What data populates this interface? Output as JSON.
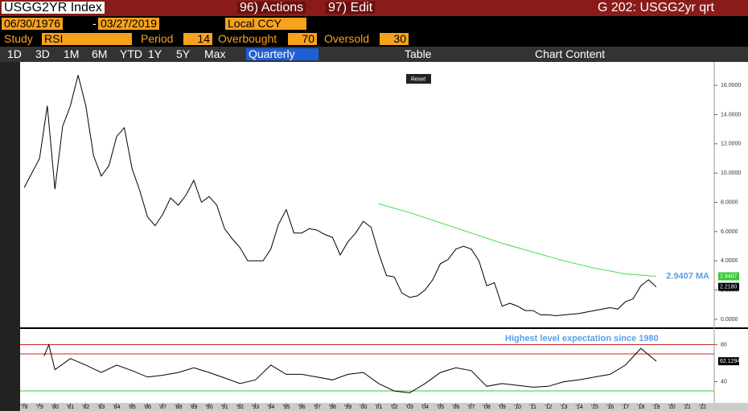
{
  "toolbar": {
    "ticker": "USGG2YR Index",
    "actions": "96) Actions",
    "edit": "97) Edit",
    "page_title": "G 202: USGG2yr qrt",
    "start_date": "06/30/1976",
    "end_date": "03/27/2019",
    "currency": "Local CCY",
    "study_label": "Study",
    "study": "RSI",
    "period_label": "Period",
    "period": 14,
    "overbought_label": "Overbought",
    "overbought": 70,
    "oversold_label": "Oversold",
    "oversold": 30,
    "ranges": [
      "1D",
      "3D",
      "1M",
      "6M",
      "YTD",
      "1Y",
      "5Y",
      "Max"
    ],
    "frequency": "Quarterly",
    "table": "Table",
    "chart_content": "Chart Content",
    "reset": "Reset"
  },
  "chart_data": [
    {
      "type": "line",
      "ylim": [
        -0.55,
        17.6
      ],
      "yticks": [
        {
          "value": 0,
          "label": "0.0000"
        },
        {
          "value": 2,
          "label": "2.0000"
        },
        {
          "value": 4,
          "label": "4.0000"
        },
        {
          "value": 6,
          "label": "6.0000"
        },
        {
          "value": 8,
          "label": "8.0000"
        },
        {
          "value": 10,
          "label": "10.0000"
        },
        {
          "value": 12,
          "label": "12.0000"
        },
        {
          "value": 14,
          "label": "14.0000"
        },
        {
          "value": 16,
          "label": "16.0000"
        }
      ],
      "annotation": "2.9407 MA",
      "last_values": [
        {
          "value": 2.9407,
          "label": "2.9407",
          "color": "#33cc33"
        },
        {
          "value": 2.218,
          "label": "2.2180",
          "color": "#000000"
        }
      ],
      "series": [
        {
          "color": "#000000",
          "x": [
            1978,
            1979,
            1979.5,
            1980,
            1980.5,
            1981,
            1981.5,
            1982,
            1982.5,
            1983,
            1983.5,
            1984,
            1984.5,
            1985,
            1985.5,
            1986,
            1986.5,
            1987,
            1987.5,
            1988,
            1988.5,
            1989,
            1989.5,
            1990,
            1990.5,
            1991,
            1991.5,
            1992,
            1992.5,
            1993,
            1993.5,
            1994,
            1994.5,
            1995,
            1995.5,
            1996,
            1996.5,
            1997,
            1997.5,
            1998,
            1998.5,
            1999,
            1999.5,
            2000,
            2000.5,
            2001,
            2001.5,
            2002,
            2002.5,
            2003,
            2003.5,
            2004,
            2004.5,
            2005,
            2005.5,
            2006,
            2006.5,
            2007,
            2007.5,
            2008,
            2008.5,
            2009,
            2009.5,
            2010,
            2010.5,
            2011,
            2011.5,
            2012,
            2012.5,
            2013,
            2013.5,
            2014,
            2014.5,
            2015,
            2015.5,
            2016,
            2016.5,
            2017,
            2017.5,
            2018,
            2018.5,
            2019
          ],
          "values": [
            9.0,
            11.0,
            14.6,
            8.9,
            13.2,
            14.6,
            16.7,
            14.6,
            11.2,
            9.8,
            10.5,
            12.5,
            13.1,
            10.3,
            8.8,
            7.0,
            6.4,
            7.2,
            8.3,
            7.8,
            8.5,
            9.5,
            8.0,
            8.4,
            7.8,
            6.2,
            5.5,
            4.9,
            4.0,
            4.0,
            4.0,
            4.8,
            6.5,
            7.5,
            5.9,
            5.9,
            6.2,
            6.1,
            5.8,
            5.6,
            4.4,
            5.3,
            5.9,
            6.7,
            6.3,
            4.5,
            3.0,
            2.9,
            1.8,
            1.5,
            1.6,
            2.0,
            2.7,
            3.8,
            4.1,
            4.8,
            5.0,
            4.8,
            4.0,
            2.3,
            2.5,
            0.9,
            1.1,
            0.9,
            0.6,
            0.6,
            0.3,
            0.3,
            0.25,
            0.3,
            0.35,
            0.4,
            0.5,
            0.6,
            0.7,
            0.8,
            0.7,
            1.2,
            1.4,
            2.3,
            2.7,
            2.218
          ]
        },
        {
          "color": "#44dd44",
          "x": [
            2001,
            2003,
            2005,
            2007,
            2009,
            2011,
            2013,
            2015,
            2017,
            2019
          ],
          "values": [
            7.9,
            7.3,
            6.6,
            5.9,
            5.2,
            4.6,
            4.0,
            3.5,
            3.1,
            2.9407
          ]
        }
      ]
    },
    {
      "type": "line",
      "ylim": [
        17,
        97
      ],
      "yticks": [
        40,
        80
      ],
      "annotation": "Highest level expectation since 1980",
      "last_values": [
        {
          "value": 62.1294,
          "label": "62.1294",
          "color": "#000000"
        }
      ],
      "series": [
        {
          "color": "#000000",
          "x": [
            1979.3,
            1979.6,
            1980,
            1981,
            1982,
            1983,
            1984,
            1985,
            1986,
            1987,
            1988,
            1989,
            1990,
            1991,
            1992,
            1993,
            1994,
            1995,
            1996,
            1997,
            1998,
            1999,
            2000,
            2001,
            2002,
            2003,
            2004,
            2005,
            2006,
            2007,
            2008,
            2009,
            2010,
            2011,
            2012,
            2013,
            2014,
            2015,
            2016,
            2017,
            2018,
            2019
          ],
          "values": [
            68,
            80,
            53,
            65,
            58,
            50,
            58,
            52,
            45,
            47,
            50,
            55,
            50,
            44,
            38,
            42,
            58,
            48,
            48,
            45,
            42,
            48,
            50,
            38,
            30,
            28,
            38,
            50,
            55,
            52,
            35,
            38,
            36,
            34,
            35,
            40,
            42,
            45,
            48,
            58,
            76,
            62.1294
          ]
        }
      ],
      "xticks": [
        {
          "value": 1978,
          "label": "'78"
        },
        {
          "value": 1979,
          "label": "'79"
        },
        {
          "value": 1980,
          "label": "'80"
        },
        {
          "value": 1981,
          "label": "'81"
        },
        {
          "value": 1982,
          "label": "'82"
        },
        {
          "value": 1983,
          "label": "'83"
        },
        {
          "value": 1984,
          "label": "'84"
        },
        {
          "value": 1985,
          "label": "'85"
        },
        {
          "value": 1986,
          "label": "'86"
        },
        {
          "value": 1987,
          "label": "'87"
        },
        {
          "value": 1988,
          "label": "'88"
        },
        {
          "value": 1989,
          "label": "'89"
        },
        {
          "value": 1990,
          "label": "'90"
        },
        {
          "value": 1991,
          "label": "'91"
        },
        {
          "value": 1992,
          "label": "'92"
        },
        {
          "value": 1993,
          "label": "'93"
        },
        {
          "value": 1994,
          "label": "'94"
        },
        {
          "value": 1995,
          "label": "'95"
        },
        {
          "value": 1996,
          "label": "'96"
        },
        {
          "value": 1997,
          "label": "'97"
        },
        {
          "value": 1998,
          "label": "'98"
        },
        {
          "value": 1999,
          "label": "'99"
        },
        {
          "value": 2000,
          "label": "'00"
        },
        {
          "value": 2001,
          "label": "'01"
        },
        {
          "value": 2002,
          "label": "'02"
        },
        {
          "value": 2003,
          "label": "'03"
        },
        {
          "value": 2004,
          "label": "'04"
        },
        {
          "value": 2005,
          "label": "'05"
        },
        {
          "value": 2006,
          "label": "'06"
        },
        {
          "value": 2007,
          "label": "'07"
        },
        {
          "value": 2008,
          "label": "'08"
        },
        {
          "value": 2009,
          "label": "'09"
        },
        {
          "value": 2010,
          "label": "'10"
        },
        {
          "value": 2011,
          "label": "'11"
        },
        {
          "value": 2012,
          "label": "'12"
        },
        {
          "value": 2013,
          "label": "'13"
        },
        {
          "value": 2014,
          "label": "'14"
        },
        {
          "value": 2015,
          "label": "'15"
        },
        {
          "value": 2016,
          "label": "'16"
        },
        {
          "value": 2017,
          "label": "'17"
        },
        {
          "value": 2018,
          "label": "'18"
        },
        {
          "value": 2019,
          "label": "'19"
        },
        {
          "value": 2020,
          "label": "'20"
        },
        {
          "value": 2021,
          "label": "'21"
        },
        {
          "value": 2022,
          "label": "'22"
        }
      ]
    }
  ]
}
